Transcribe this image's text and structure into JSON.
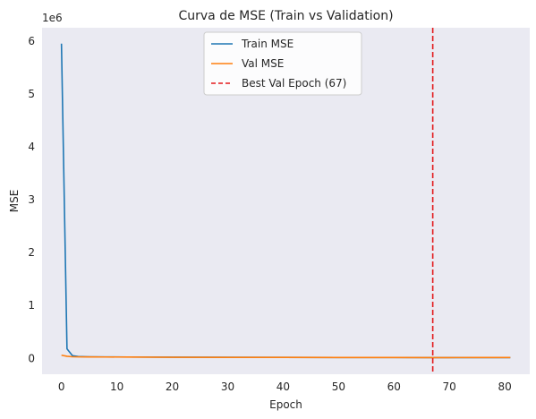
{
  "chart_data": {
    "type": "line",
    "title": "Curva de MSE (Train vs Validation)",
    "xlabel": "Epoch",
    "ylabel": "MSE",
    "y_offset_label": "1e6",
    "xlim": [
      -3.5,
      84.5
    ],
    "ylim": [
      -0.3,
      6.25
    ],
    "y_unit_multiplier": 1000000,
    "x_ticks": [
      0,
      10,
      20,
      30,
      40,
      50,
      60,
      70,
      80
    ],
    "y_ticks": [
      0,
      1,
      2,
      3,
      4,
      5,
      6
    ],
    "grid": false,
    "background": "#eaeaf2",
    "legend_position": "upper center",
    "series": [
      {
        "name": "Train MSE",
        "color": "#1f77b4",
        "x": [
          0,
          1,
          2,
          3,
          5,
          8,
          12,
          20,
          30,
          40,
          50,
          60,
          67,
          70,
          75,
          81
        ],
        "y": [
          5.95,
          0.18,
          0.05,
          0.035,
          0.03,
          0.028,
          0.026,
          0.022,
          0.02,
          0.018,
          0.017,
          0.016,
          0.015,
          0.015,
          0.015,
          0.015
        ]
      },
      {
        "name": "Val MSE",
        "color": "#ff7f0e",
        "x": [
          0,
          1,
          2,
          3,
          5,
          8,
          12,
          20,
          30,
          40,
          50,
          60,
          67,
          70,
          75,
          81
        ],
        "y": [
          0.06,
          0.04,
          0.03,
          0.028,
          0.027,
          0.026,
          0.025,
          0.021,
          0.019,
          0.018,
          0.017,
          0.016,
          0.015,
          0.015,
          0.016,
          0.016
        ]
      }
    ],
    "vline": {
      "name": "Best Val Epoch (67)",
      "x": 67,
      "color": "#e31a1c",
      "style": "dashed"
    }
  }
}
